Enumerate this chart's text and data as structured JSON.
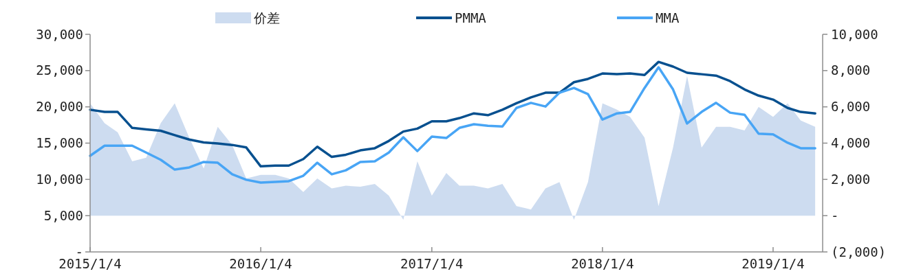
{
  "chart_data": {
    "type": "line",
    "legend": "top",
    "x": [
      "2015-01-04",
      "2015-02-04",
      "2015-03-04",
      "2015-04-04",
      "2015-05-04",
      "2015-06-04",
      "2015-07-04",
      "2015-08-04",
      "2015-09-04",
      "2015-10-04",
      "2015-11-04",
      "2015-12-04",
      "2016-01-04",
      "2016-02-04",
      "2016-03-04",
      "2016-04-04",
      "2016-05-04",
      "2016-06-04",
      "2016-07-04",
      "2016-08-04",
      "2016-09-04",
      "2016-10-04",
      "2016-11-04",
      "2016-12-04",
      "2017-01-04",
      "2017-02-04",
      "2017-03-04",
      "2017-04-04",
      "2017-05-04",
      "2017-06-04",
      "2017-07-04",
      "2017-08-04",
      "2017-09-04",
      "2017-10-04",
      "2017-11-04",
      "2017-12-04",
      "2018-01-04",
      "2018-02-04",
      "2018-03-04",
      "2018-04-04",
      "2018-05-04",
      "2018-06-04",
      "2018-07-04",
      "2018-08-04",
      "2018-09-04",
      "2018-10-04",
      "2018-11-04",
      "2018-12-04",
      "2019-01-04",
      "2019-02-04",
      "2019-03-04",
      "2019-04-04"
    ],
    "series": [
      {
        "name": "价差",
        "type": "area",
        "axis": "y2",
        "color": "#cddcf0",
        "values": [
          6200,
          5100,
          4600,
          3000,
          3200,
          5100,
          6200,
          4300,
          2600,
          4900,
          3900,
          2050,
          2250,
          2250,
          2050,
          1300,
          2050,
          1500,
          1650,
          1600,
          1750,
          1100,
          -230,
          3000,
          1100,
          2350,
          1650,
          1650,
          1500,
          1750,
          530,
          340,
          1500,
          1850,
          -230,
          1850,
          6200,
          5850,
          5450,
          4300,
          530,
          3750,
          7700,
          3750,
          4900,
          4900,
          4700,
          6000,
          5450,
          6200,
          5250,
          4900
        ]
      },
      {
        "name": "PMMA",
        "color": "#07508f",
        "values": [
          19600,
          19300,
          19300,
          17100,
          16900,
          16700,
          16100,
          15500,
          15100,
          14950,
          14750,
          14400,
          11800,
          11900,
          11900,
          12800,
          14500,
          13100,
          13400,
          14000,
          14300,
          15300,
          16600,
          17000,
          18000,
          18000,
          18450,
          19100,
          18850,
          19600,
          20500,
          21300,
          21950,
          21950,
          23400,
          23850,
          24600,
          24500,
          24600,
          24400,
          26200,
          25550,
          24700,
          24500,
          24300,
          23550,
          22400,
          21550,
          21000,
          19850,
          19300,
          19100
        ]
      },
      {
        "name": "MMA",
        "color": "#48a5f5",
        "values": [
          13250,
          14650,
          14650,
          14650,
          13700,
          12700,
          11350,
          11650,
          12400,
          12300,
          10700,
          9950,
          9550,
          9650,
          9750,
          10500,
          12300,
          10700,
          11250,
          12400,
          12500,
          13700,
          15800,
          13900,
          15900,
          15700,
          17100,
          17600,
          17400,
          17300,
          19850,
          20550,
          20050,
          21950,
          22600,
          21750,
          18250,
          19100,
          19300,
          22600,
          25450,
          22400,
          17700,
          19300,
          20550,
          19200,
          18900,
          16300,
          16200,
          15050,
          14300,
          14300
        ]
      }
    ],
    "xlim": [
      "2015-01-04",
      "2019-04-20"
    ],
    "xticks": [
      {
        "value": "2015-01-04",
        "label": "2015/1/4"
      },
      {
        "value": "2016-01-04",
        "label": "2016/1/4"
      },
      {
        "value": "2017-01-04",
        "label": "2017/1/4"
      },
      {
        "value": "2018-01-04",
        "label": "2018/1/4"
      },
      {
        "value": "2019-01-04",
        "label": "2019/1/4"
      }
    ],
    "ylim": [
      0,
      30000
    ],
    "yticks": [
      {
        "value": 0,
        "label": "-"
      },
      {
        "value": 5000,
        "label": "5,000"
      },
      {
        "value": 10000,
        "label": "10,000"
      },
      {
        "value": 15000,
        "label": "15,000"
      },
      {
        "value": 20000,
        "label": "20,000"
      },
      {
        "value": 25000,
        "label": "25,000"
      },
      {
        "value": 30000,
        "label": "30,000"
      }
    ],
    "y2lim": [
      -2000,
      10000
    ],
    "y2ticks": [
      {
        "value": -2000,
        "label": "(2,000)"
      },
      {
        "value": 0,
        "label": "-"
      },
      {
        "value": 2000,
        "label": "2,000"
      },
      {
        "value": 4000,
        "label": "4,000"
      },
      {
        "value": 6000,
        "label": "6,000"
      },
      {
        "value": 8000,
        "label": "8,000"
      },
      {
        "value": 10000,
        "label": "10,000"
      }
    ]
  }
}
